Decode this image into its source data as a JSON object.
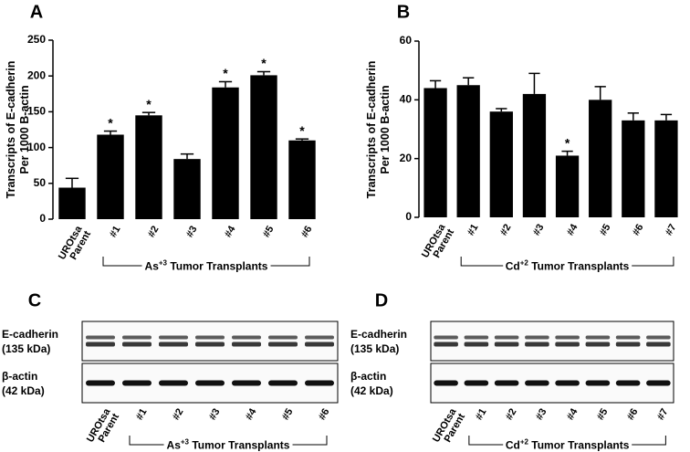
{
  "chart_data": [
    {
      "type": "bar",
      "panel": "A",
      "y_label": [
        "Transcripts of E-cadherin",
        "Per 1000 B-actin"
      ],
      "categories": [
        "UROtsa Parent",
        "#1",
        "#2",
        "#3",
        "#4",
        "#5",
        "#6"
      ],
      "values": [
        44,
        118,
        145,
        84,
        184,
        201,
        110
      ],
      "errors": [
        13,
        5,
        4,
        7,
        8,
        5,
        2
      ],
      "marker": "*",
      "marked": [
        false,
        true,
        true,
        false,
        true,
        true,
        true
      ],
      "color": "#000000",
      "ylim": [
        0,
        250
      ],
      "yticks": [
        0,
        50,
        100,
        150,
        200,
        250
      ],
      "group_label": {
        "prefix": "As",
        "superscript": "+3",
        "suffix": "Tumor Transplants"
      }
    },
    {
      "type": "bar",
      "panel": "B",
      "y_label": [
        "Transcripts of E-cadherin",
        "Per 1000 B-actin"
      ],
      "categories": [
        "UROtsa Parent",
        "#1",
        "#2",
        "#3",
        "#4",
        "#5",
        "#6",
        "#7"
      ],
      "values": [
        44,
        45,
        36,
        42,
        21,
        40,
        33,
        33
      ],
      "errors": [
        2.5,
        2.5,
        1,
        7,
        1.5,
        4.5,
        2.5,
        2
      ],
      "marker": "*",
      "marked": [
        false,
        false,
        false,
        false,
        true,
        false,
        false,
        false
      ],
      "color": "#000000",
      "ylim": [
        0,
        60
      ],
      "yticks": [
        0,
        20,
        40,
        60
      ],
      "group_label": {
        "prefix": "Cd",
        "superscript": "+2",
        "suffix": "Tumor Transplants"
      }
    }
  ],
  "blots": [
    {
      "panel": "C",
      "rows": [
        {
          "label": "E-cadherin",
          "size": "(135 kDa)"
        },
        {
          "label": "β-actin",
          "size": "(42 kDa)"
        }
      ],
      "lanes": [
        "UROtsa Parent",
        "#1",
        "#2",
        "#3",
        "#4",
        "#5",
        "#6"
      ],
      "group_label": {
        "prefix": "As",
        "superscript": "+3",
        "suffix": "Tumor Transplants"
      }
    },
    {
      "panel": "D",
      "rows": [
        {
          "label": "E-cadherin",
          "size": "(135 kDa)"
        },
        {
          "label": "β-actin",
          "size": "(42 kDa)"
        }
      ],
      "lanes": [
        "UROtsa Parent",
        "#1",
        "#2",
        "#3",
        "#4",
        "#5",
        "#6",
        "#7"
      ],
      "group_label": {
        "prefix": "Cd",
        "superscript": "+2",
        "suffix": "Tumor Transplants"
      }
    }
  ]
}
